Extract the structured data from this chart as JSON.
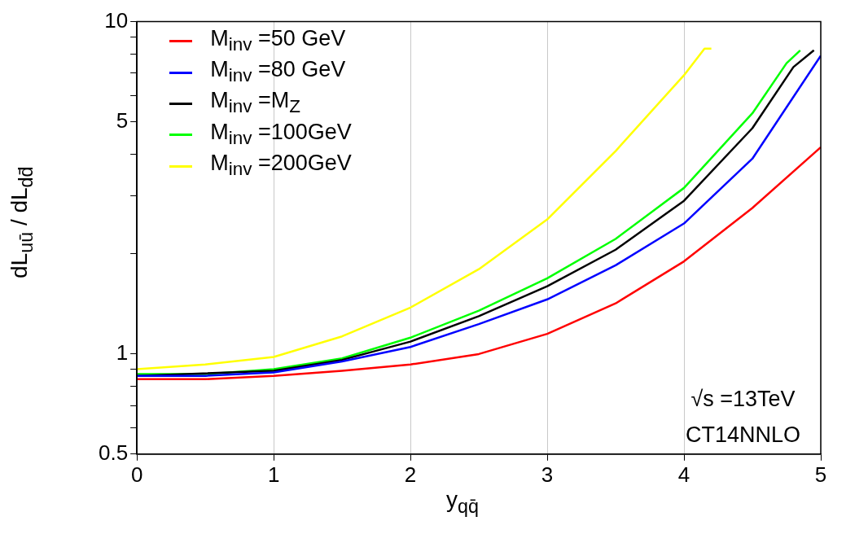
{
  "chart_data": {
    "type": "line",
    "xlabel": "y$_{qq̄}$",
    "ylabel": "dL$_{uū}$ / dL$_{dd̄}$",
    "annotations": [
      "√s =13TeV",
      "CT14NNLO"
    ],
    "xlim": [
      0,
      5
    ],
    "xticks": [
      0,
      1,
      2,
      3,
      4,
      5
    ],
    "ylim": [
      0.5,
      10
    ],
    "yticks": [
      0.5,
      {
        "value": 0.6,
        "label": null
      },
      {
        "value": 0.7,
        "label": null
      },
      {
        "value": 0.8,
        "label": null
      },
      {
        "value": 0.9,
        "label": null
      },
      1,
      {
        "value": 2,
        "label": null
      },
      {
        "value": 3,
        "label": null
      },
      {
        "value": 4,
        "label": null
      },
      5,
      {
        "value": 6,
        "label": null
      },
      {
        "value": 7,
        "label": null
      },
      {
        "value": 8,
        "label": null
      },
      {
        "value": 9,
        "label": null
      },
      10
    ],
    "log": "y",
    "grid": "x",
    "legend": "top left",
    "marker": "none",
    "line_style": "solid",
    "series": [
      {
        "name": "M$_{inv}$ =50 GeV",
        "color": "#ff0000",
        "x": [
          0,
          0.5,
          1,
          1.5,
          2,
          2.5,
          3,
          3.5,
          4,
          4.5,
          5
        ],
        "values": [
          0.84,
          0.84,
          0.86,
          0.89,
          0.93,
          1.0,
          1.15,
          1.42,
          1.9,
          2.75,
          4.19
        ]
      },
      {
        "name": "M$_{inv}$ =80 GeV",
        "color": "#0000ff",
        "x": [
          0,
          0.5,
          1,
          1.5,
          2,
          2.5,
          3,
          3.5,
          4,
          4.5,
          5
        ],
        "values": [
          0.86,
          0.86,
          0.88,
          0.95,
          1.05,
          1.23,
          1.46,
          1.85,
          2.47,
          3.87,
          7.9
        ]
      },
      {
        "name": "M$_{inv}$ =M$_{Z}$",
        "color": "#000000",
        "x": [
          0,
          1,
          1.5,
          2,
          2.5,
          3,
          3.5,
          4,
          4.5,
          4.8,
          4.95
        ],
        "values": [
          0.86,
          0.89,
          0.96,
          1.09,
          1.3,
          1.6,
          2.06,
          2.89,
          4.78,
          7.3,
          8.2
        ]
      },
      {
        "name": "M$_{inv}$ =100GeV",
        "color": "#00ff00",
        "x": [
          0,
          0.5,
          1,
          1.5,
          2,
          2.5,
          3,
          3.5,
          4,
          4.5,
          4.75,
          4.85
        ],
        "values": [
          0.87,
          0.87,
          0.9,
          0.97,
          1.12,
          1.35,
          1.69,
          2.22,
          3.16,
          5.3,
          7.5,
          8.2
        ]
      },
      {
        "name": "M$_{inv}$ =200GeV",
        "color": "#ffff00",
        "x": [
          0,
          0.5,
          1,
          1.5,
          2,
          2.5,
          3,
          3.5,
          4,
          4.15,
          4.2
        ],
        "values": [
          0.9,
          0.93,
          0.98,
          1.13,
          1.38,
          1.8,
          2.54,
          4.08,
          6.9,
          8.3,
          8.3
        ]
      }
    ]
  }
}
